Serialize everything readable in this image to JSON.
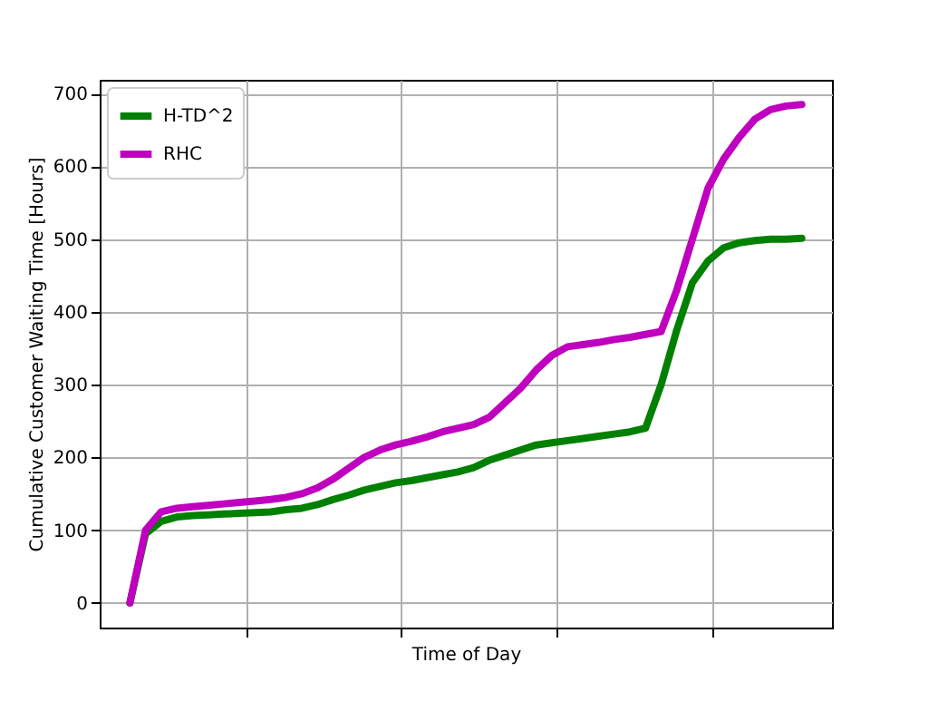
{
  "chart_data": {
    "type": "line",
    "xlabel": "Time of Day",
    "ylabel": "Cumulative Customer Waiting Time [Hours]",
    "categories": [
      null,
      null,
      null,
      null,
      null,
      null,
      null,
      null,
      null,
      null,
      null,
      null,
      null,
      null,
      null,
      null,
      null,
      null,
      null,
      null,
      null,
      null,
      null,
      null,
      null,
      null,
      null,
      null,
      null,
      null,
      null,
      null,
      null,
      null,
      null,
      null,
      null,
      null,
      null,
      null,
      null,
      null,
      null,
      null
    ],
    "series": [
      {
        "name": "H-TD^2",
        "color": "#008000",
        "values": [
          0,
          95,
          112,
          118,
          120,
          121,
          122,
          123,
          124,
          125,
          128,
          130,
          135,
          142,
          148,
          155,
          160,
          165,
          168,
          172,
          176,
          180,
          186,
          196,
          203,
          210,
          217,
          220,
          223,
          226,
          229,
          232,
          235,
          240,
          300,
          375,
          440,
          470,
          488,
          495,
          498,
          500,
          500,
          501
        ]
      },
      {
        "name": "RHC",
        "color": "#bf00bf",
        "values": [
          0,
          100,
          125,
          130,
          132,
          134,
          136,
          138,
          140,
          142,
          145,
          150,
          158,
          170,
          185,
          200,
          210,
          217,
          222,
          228,
          235,
          240,
          245,
          255,
          275,
          295,
          320,
          340,
          352,
          355,
          358,
          362,
          365,
          369,
          373,
          430,
          500,
          570,
          610,
          640,
          665,
          678,
          683,
          685
        ]
      }
    ],
    "ylim": [
      -34,
      719
    ],
    "yticks": [
      0,
      100,
      200,
      300,
      400,
      500,
      600,
      700
    ],
    "grid": true,
    "legend": "top left",
    "line_style": "solid",
    "marker": "none",
    "tick_labels": "y"
  }
}
